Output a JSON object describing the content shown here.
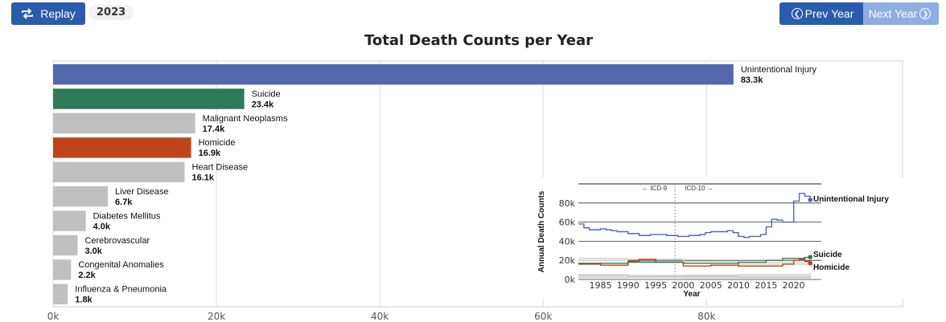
{
  "controls": {
    "replay_label": "Replay",
    "year": "2023",
    "prev_label": "Prev Year",
    "next_label": "Next Year"
  },
  "colors": {
    "Unintentional Injury": "#5468ae",
    "Suicide": "#2e7a5a",
    "Homicide": "#c0441b",
    "other": "#c0c0c0",
    "button": "#2b5cab",
    "button_disabled": "#8eaee0"
  },
  "chart_data": [
    {
      "type": "bar",
      "orientation": "horizontal",
      "title": "Total Death Counts per Year",
      "categories": [
        "Unintentional Injury",
        "Suicide",
        "Malignant Neoplasms",
        "Homicide",
        "Heart Disease",
        "Liver Disease",
        "Diabetes Mellitus",
        "Cerebrovascular",
        "Congenital Anomalies",
        "Influenza & Pneumonia"
      ],
      "values": [
        83300,
        23400,
        17400,
        16900,
        16100,
        6700,
        4000,
        3000,
        2200,
        1800
      ],
      "value_labels": [
        "83.3k",
        "23.4k",
        "17.4k",
        "16.9k",
        "16.1k",
        "6.7k",
        "4.0k",
        "3.0k",
        "2.2k",
        "1.8k"
      ],
      "xlim": [
        0,
        104000
      ],
      "xticks": [
        0,
        20000,
        40000,
        60000,
        80000
      ],
      "xtick_labels": [
        "0k",
        "20k",
        "40k",
        "60k",
        "80k"
      ],
      "grid": true
    },
    {
      "type": "line",
      "xlabel": "Year",
      "ylabel": "Annual Death Counts",
      "xlim": [
        1981,
        2025
      ],
      "ylim": [
        0,
        100000
      ],
      "xticks": [
        1985,
        1990,
        1995,
        2000,
        2005,
        2010,
        2015,
        2020
      ],
      "yticks": [
        0,
        20000,
        40000,
        60000,
        80000
      ],
      "ytick_labels": [
        "0k",
        "20k",
        "40k",
        "60k",
        "80k"
      ],
      "annotations": [
        {
          "text": "← ICD-9",
          "x": 1998
        },
        {
          "text": "ICD-10 →",
          "x": 1999
        }
      ],
      "series": [
        {
          "name": "Unintentional Injury",
          "x": [
            1981,
            1982,
            1983,
            1984,
            1985,
            1986,
            1987,
            1988,
            1989,
            1990,
            1991,
            1992,
            1993,
            1994,
            1995,
            1996,
            1997,
            1998,
            1999,
            2000,
            2001,
            2002,
            2003,
            2004,
            2005,
            2006,
            2007,
            2008,
            2009,
            2010,
            2011,
            2012,
            2013,
            2014,
            2015,
            2016,
            2017,
            2018,
            2019,
            2020,
            2021,
            2022,
            2023
          ],
          "y": [
            58000,
            54000,
            52000,
            52000,
            53000,
            52000,
            51000,
            50000,
            50000,
            48000,
            48000,
            46000,
            46000,
            47000,
            47000,
            47000,
            46000,
            46000,
            45000,
            45000,
            46000,
            46000,
            47000,
            49000,
            50000,
            50000,
            50000,
            51000,
            49000,
            45000,
            44000,
            45000,
            45000,
            47000,
            55000,
            63000,
            62000,
            60000,
            60000,
            82000,
            90000,
            87000,
            83300
          ]
        },
        {
          "name": "Suicide",
          "x": [
            1981,
            1985,
            1990,
            1995,
            2000,
            2005,
            2010,
            2015,
            2018,
            2020,
            2022,
            2023
          ],
          "y": [
            16000,
            17000,
            18000,
            18000,
            17000,
            17000,
            18000,
            20000,
            22000,
            22000,
            23000,
            23400
          ]
        },
        {
          "name": "Homicide",
          "x": [
            1981,
            1985,
            1990,
            1992,
            1995,
            2000,
            2005,
            2010,
            2014,
            2018,
            2020,
            2021,
            2022,
            2023
          ],
          "y": [
            17000,
            15000,
            19000,
            21000,
            18000,
            14000,
            15000,
            14000,
            14000,
            16000,
            20000,
            21000,
            19000,
            16900
          ]
        },
        {
          "name": "Malignant Neoplasms",
          "x": [
            1981,
            1990,
            2000,
            2010,
            2023
          ],
          "y": [
            22000,
            21000,
            19000,
            18000,
            17400
          ]
        },
        {
          "name": "Heart Disease",
          "x": [
            1981,
            1990,
            2000,
            2010,
            2023
          ],
          "y": [
            20000,
            19000,
            17000,
            16000,
            16100
          ]
        },
        {
          "name": "Liver Disease",
          "x": [
            1981,
            1990,
            2000,
            2010,
            2023
          ],
          "y": [
            4000,
            4000,
            4500,
            5000,
            6700
          ]
        },
        {
          "name": "Diabetes Mellitus",
          "x": [
            1981,
            1990,
            2000,
            2010,
            2023
          ],
          "y": [
            2500,
            2800,
            3000,
            3200,
            4000
          ]
        },
        {
          "name": "Cerebrovascular",
          "x": [
            1981,
            1990,
            2000,
            2010,
            2023
          ],
          "y": [
            5000,
            4200,
            3500,
            3000,
            3000
          ]
        },
        {
          "name": "Congenital Anomalies",
          "x": [
            1981,
            1990,
            2000,
            2010,
            2023
          ],
          "y": [
            4500,
            3800,
            3000,
            2500,
            2200
          ]
        },
        {
          "name": "Influenza & Pneumonia",
          "x": [
            1981,
            1990,
            2000,
            2010,
            2023
          ],
          "y": [
            2000,
            2200,
            1900,
            1700,
            1800
          ]
        }
      ],
      "highlighted": [
        "Unintentional Injury",
        "Suicide",
        "Homicide"
      ]
    }
  ]
}
